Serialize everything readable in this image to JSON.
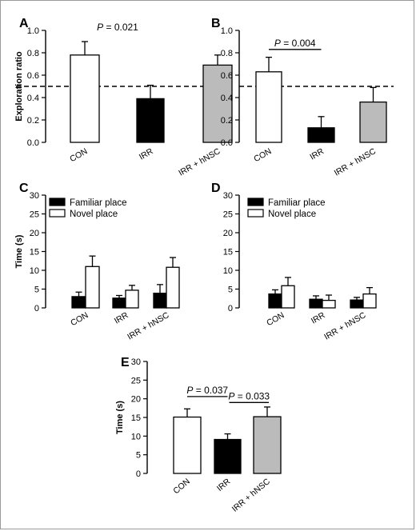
{
  "chart_data": [
    {
      "id": "A",
      "panel_label": "A",
      "type": "bar",
      "ylabel": "Exploration ratio",
      "ylim": [
        0,
        1.0
      ],
      "yticks": [
        0,
        0.2,
        0.4,
        0.6,
        0.8,
        1.0
      ],
      "ytick_labels": [
        "0.0",
        "0.2",
        "0.4",
        "0.6",
        "0.8",
        "1.0"
      ],
      "categories": [
        "CON",
        "IRR",
        "IRR + hNSC"
      ],
      "values": [
        0.78,
        0.39,
        0.69
      ],
      "errors": [
        0.12,
        0.12,
        0.09
      ],
      "bar_colors": [
        "#ffffff",
        "#000000",
        "#bbbbbb"
      ],
      "reference_line": 0.5,
      "annotations": [
        {
          "italic": "P",
          "text": " = 0.021",
          "between": [
            0,
            1
          ],
          "y": 0.97,
          "bracket": false
        }
      ]
    },
    {
      "id": "B",
      "panel_label": "B",
      "type": "bar",
      "ylabel": "",
      "ylim": [
        0,
        1.0
      ],
      "yticks": [
        0,
        0.2,
        0.4,
        0.6,
        0.8,
        1.0
      ],
      "ytick_labels": [
        "0.0",
        "0.2",
        "0.4",
        "0.6",
        "0.8",
        "1.0"
      ],
      "categories": [
        "CON",
        "IRR",
        "IRR + hNSC"
      ],
      "values": [
        0.63,
        0.13,
        0.36
      ],
      "errors": [
        0.13,
        0.1,
        0.13
      ],
      "bar_colors": [
        "#ffffff",
        "#000000",
        "#bbbbbb"
      ],
      "reference_line": 0.5,
      "annotations": [
        {
          "italic": "P",
          "text": " = 0.004",
          "between": [
            0,
            1
          ],
          "y": 0.83,
          "bracket": true
        }
      ]
    },
    {
      "id": "C",
      "panel_label": "C",
      "type": "bar",
      "ylabel": "Time (s)",
      "ylim": [
        0,
        30
      ],
      "yticks": [
        0,
        5,
        10,
        15,
        20,
        25,
        30
      ],
      "ytick_labels": [
        "0",
        "5",
        "10",
        "15",
        "20",
        "25",
        "30"
      ],
      "categories": [
        "CON",
        "IRR",
        "IRR + hNSC"
      ],
      "series": [
        {
          "name": "Familiar place",
          "color": "#000000",
          "values": [
            3.0,
            2.6,
            3.9
          ],
          "errors": [
            1.2,
            0.7,
            2.3
          ]
        },
        {
          "name": "Novel place",
          "color": "#ffffff",
          "values": [
            11.0,
            4.7,
            10.8
          ],
          "errors": [
            2.8,
            1.3,
            2.6
          ]
        }
      ],
      "legend": "top-left"
    },
    {
      "id": "D",
      "panel_label": "D",
      "type": "bar",
      "ylabel": "",
      "ylim": [
        0,
        30
      ],
      "yticks": [
        0,
        5,
        10,
        15,
        20,
        25,
        30
      ],
      "ytick_labels": [
        "0",
        "5",
        "10",
        "15",
        "20",
        "25",
        "30"
      ],
      "categories": [
        "CON",
        "IRR",
        "IRR + hNSC"
      ],
      "series": [
        {
          "name": "Familiar place",
          "color": "#000000",
          "values": [
            3.7,
            2.3,
            2.1
          ],
          "errors": [
            1.1,
            0.9,
            0.7
          ]
        },
        {
          "name": "Novel place",
          "color": "#ffffff",
          "values": [
            5.9,
            2.0,
            3.7
          ],
          "errors": [
            2.2,
            1.4,
            1.7
          ]
        }
      ],
      "legend": "top-left"
    },
    {
      "id": "E",
      "panel_label": "E",
      "type": "bar",
      "ylabel": "Time (s)",
      "ylim": [
        0,
        30
      ],
      "yticks": [
        0,
        5,
        10,
        15,
        20,
        25,
        30
      ],
      "ytick_labels": [
        "0",
        "5",
        "10",
        "15",
        "20",
        "25",
        "30"
      ],
      "categories": [
        "CON",
        "IRR",
        "IRR + hNSC"
      ],
      "values": [
        15.1,
        9.1,
        15.2
      ],
      "errors": [
        2.2,
        1.5,
        2.6
      ],
      "bar_colors": [
        "#ffffff",
        "#000000",
        "#bbbbbb"
      ],
      "annotations": [
        {
          "italic": "P",
          "text": " = 0.037",
          "between": [
            0,
            1
          ],
          "y": 20.6,
          "bracket": true
        },
        {
          "italic": "P",
          "text": " = 0.033",
          "between": [
            1,
            2
          ],
          "y": 19.0,
          "bracket": true
        }
      ]
    }
  ]
}
